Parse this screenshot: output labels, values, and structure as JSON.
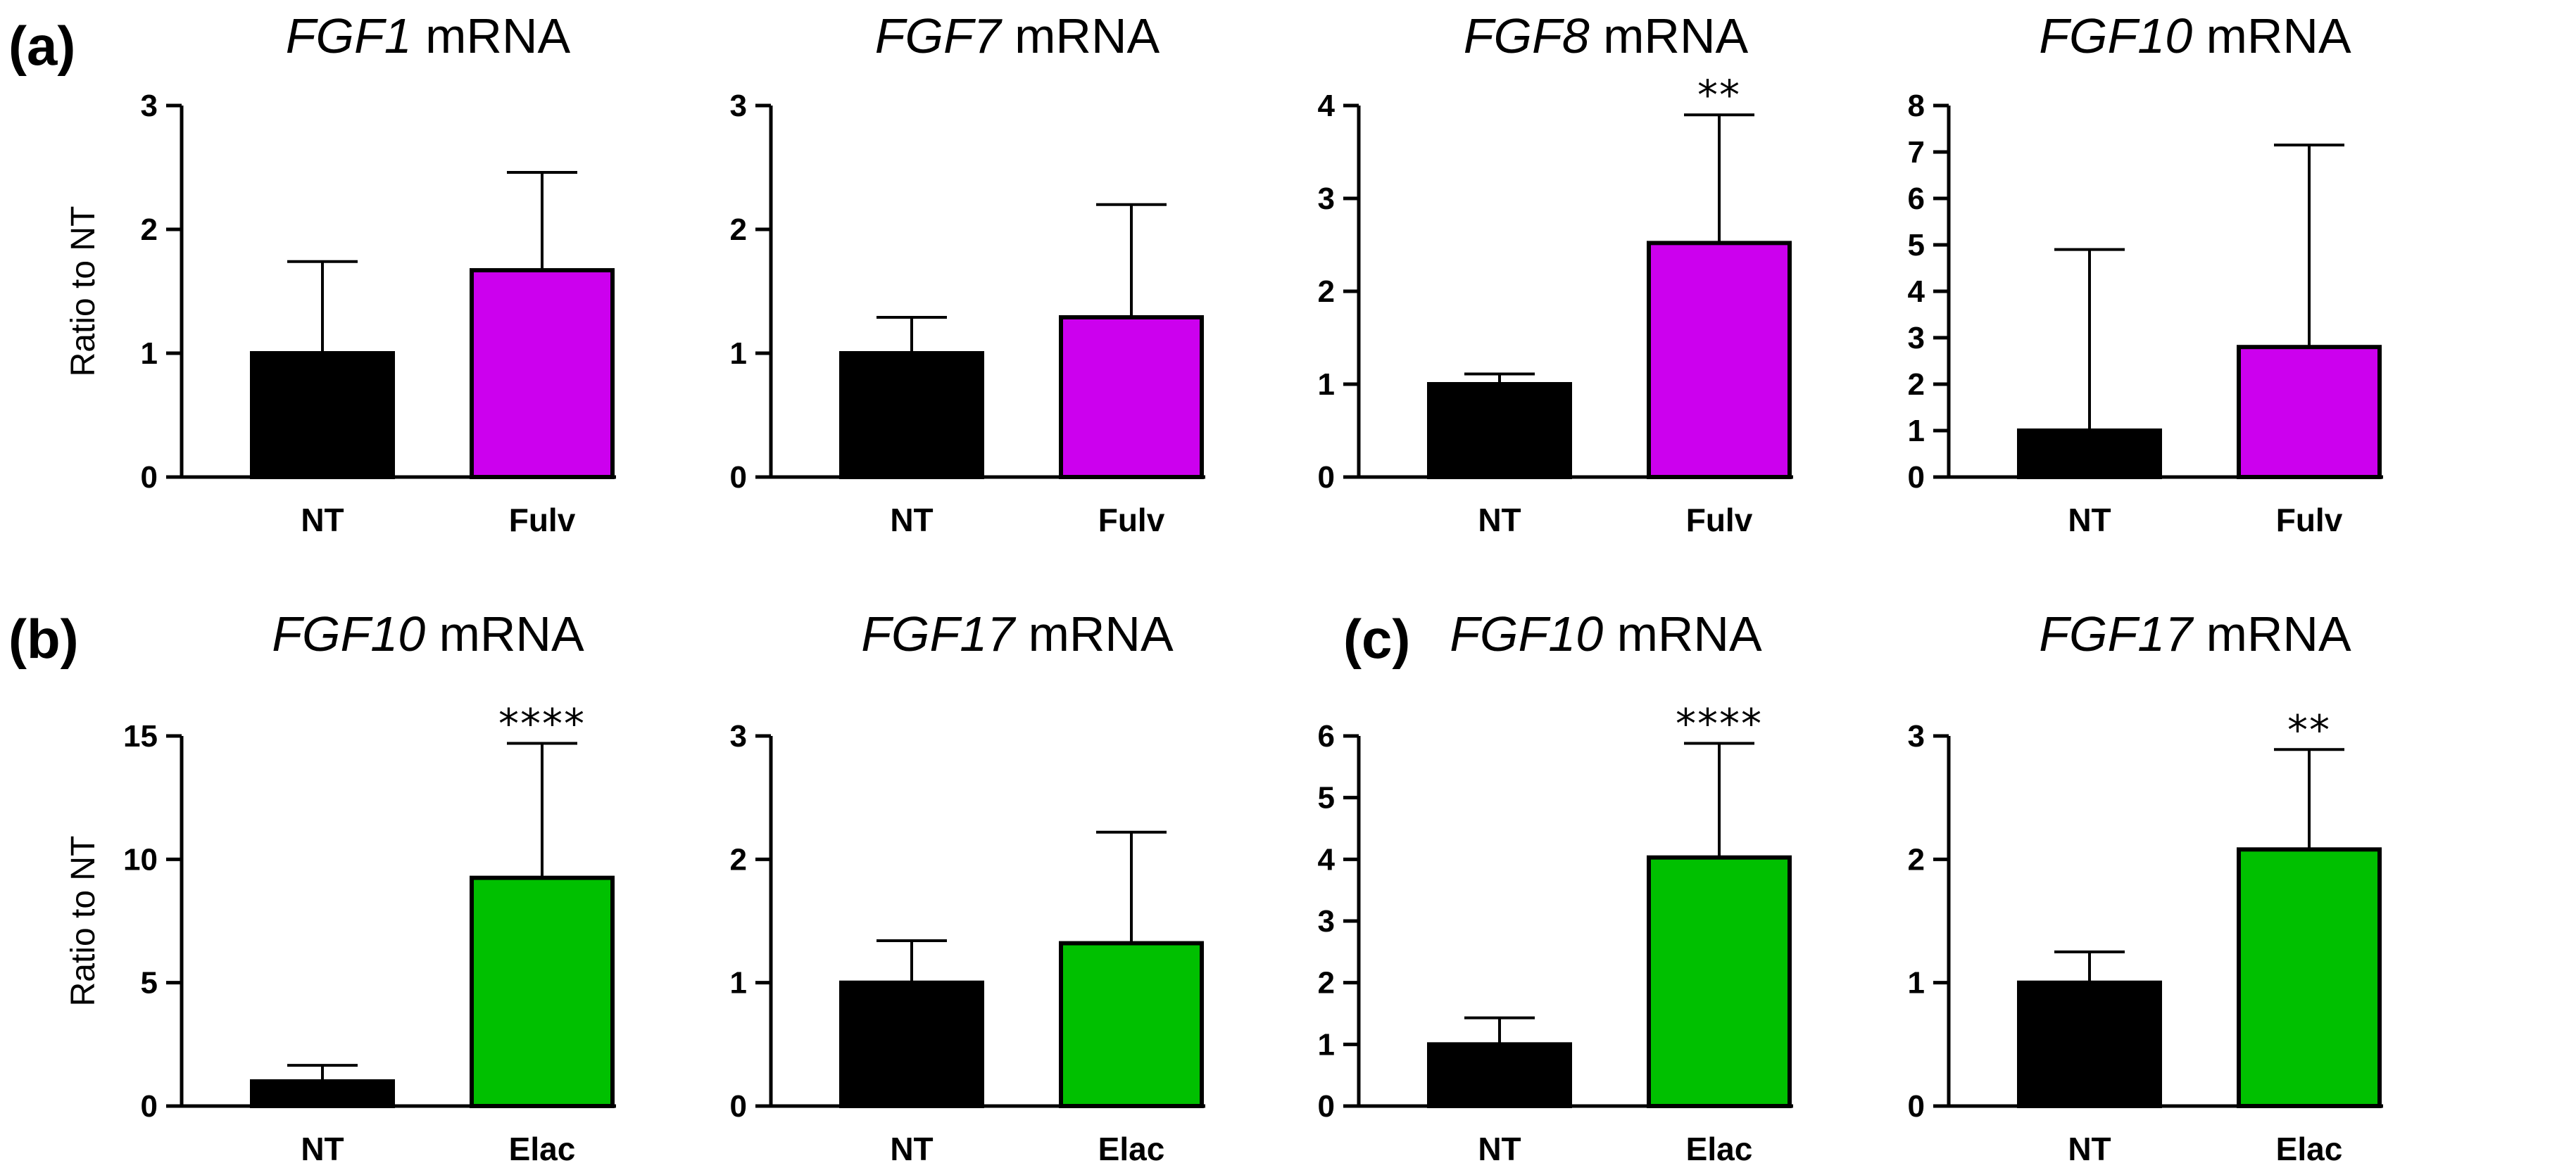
{
  "colors": {
    "control": "#000000",
    "fulvestrant": "#cc00ee",
    "elacestrant": "#00c000"
  },
  "panels": [
    {
      "label": "(a)"
    },
    {
      "label": "(b)"
    },
    {
      "label": "(c)"
    }
  ],
  "chart_data": [
    {
      "type": "bar",
      "panel": "(a)",
      "title_gene": "FGF1",
      "title_rest": " mRNA",
      "ylabel": "Ratio to NT",
      "ylim": [
        0,
        3
      ],
      "yticks": [
        0,
        1,
        2,
        3
      ],
      "categories": [
        "NT",
        "Fulv"
      ],
      "values": [
        1.0,
        1.67
      ],
      "errors": [
        0.74,
        0.79
      ],
      "colors": [
        "#000000",
        "#cc00ee"
      ],
      "significance": ""
    },
    {
      "type": "bar",
      "panel": "(a)",
      "title_gene": "FGF7",
      "title_rest": " mRNA",
      "ylabel": "",
      "ylim": [
        0,
        3
      ],
      "yticks": [
        0,
        1,
        2,
        3
      ],
      "categories": [
        "NT",
        "Fulv"
      ],
      "values": [
        1.0,
        1.29
      ],
      "errors": [
        0.29,
        0.91
      ],
      "colors": [
        "#000000",
        "#cc00ee"
      ],
      "significance": ""
    },
    {
      "type": "bar",
      "panel": "(a)",
      "title_gene": "FGF8",
      "title_rest": " mRNA",
      "ylabel": "",
      "ylim": [
        0,
        4
      ],
      "yticks": [
        0,
        1,
        2,
        3,
        4
      ],
      "categories": [
        "NT",
        "Fulv"
      ],
      "values": [
        1.0,
        2.52
      ],
      "errors": [
        0.11,
        1.38
      ],
      "colors": [
        "#000000",
        "#cc00ee"
      ],
      "significance": "**"
    },
    {
      "type": "bar",
      "panel": "(a)",
      "title_gene": "FGF10",
      "title_rest": " mRNA",
      "ylabel": "",
      "ylim": [
        0,
        8
      ],
      "yticks": [
        0,
        1,
        2,
        3,
        4,
        5,
        6,
        7,
        8
      ],
      "categories": [
        "NT",
        "Fulv"
      ],
      "values": [
        1.0,
        2.8
      ],
      "errors": [
        3.9,
        4.35
      ],
      "colors": [
        "#000000",
        "#cc00ee"
      ],
      "significance": ""
    },
    {
      "type": "bar",
      "panel": "(b)",
      "title_gene": "FGF10",
      "title_rest": " mRNA",
      "ylabel": "Ratio to NT",
      "ylim": [
        0,
        15
      ],
      "yticks": [
        0,
        5,
        10,
        15
      ],
      "categories": [
        "NT",
        "Elac"
      ],
      "values": [
        1.0,
        9.25
      ],
      "errors": [
        0.65,
        5.45
      ],
      "colors": [
        "#000000",
        "#00c000"
      ],
      "significance": "****"
    },
    {
      "type": "bar",
      "panel": "(b)",
      "title_gene": "FGF17",
      "title_rest": " mRNA",
      "ylabel": "",
      "ylim": [
        0,
        3
      ],
      "yticks": [
        0,
        1,
        2,
        3
      ],
      "categories": [
        "NT",
        "Elac"
      ],
      "values": [
        1.0,
        1.32
      ],
      "errors": [
        0.34,
        0.9
      ],
      "colors": [
        "#000000",
        "#00c000"
      ],
      "significance": ""
    },
    {
      "type": "bar",
      "panel": "(c)",
      "title_gene": "FGF10",
      "title_rest": " mRNA",
      "ylabel": "",
      "ylim": [
        0,
        6
      ],
      "yticks": [
        0,
        1,
        2,
        3,
        4,
        5,
        6
      ],
      "categories": [
        "NT",
        "Elac"
      ],
      "values": [
        1.0,
        4.03
      ],
      "errors": [
        0.43,
        1.85
      ],
      "colors": [
        "#000000",
        "#00c000"
      ],
      "significance": "****"
    },
    {
      "type": "bar",
      "panel": "(c)",
      "title_gene": "FGF17",
      "title_rest": " mRNA",
      "ylabel": "",
      "ylim": [
        0,
        3
      ],
      "yticks": [
        0,
        1,
        2,
        3
      ],
      "categories": [
        "NT",
        "Elac"
      ],
      "values": [
        1.0,
        2.08
      ],
      "errors": [
        0.25,
        0.81
      ],
      "colors": [
        "#000000",
        "#00c000"
      ],
      "significance": "**"
    }
  ]
}
